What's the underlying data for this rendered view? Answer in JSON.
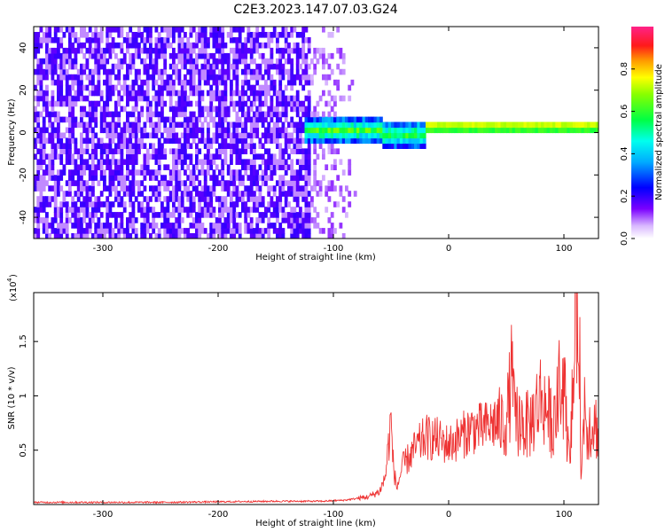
{
  "title": "C2E3.2023.147.07.03.G24",
  "chart_data": [
    {
      "type": "heatmap",
      "xlabel": "Height of straight line (km)",
      "ylabel": "Frequency (Hz)",
      "xlim": [
        -360,
        130
      ],
      "ylim": [
        -50,
        50
      ],
      "xticks": [
        -300,
        -200,
        -100,
        0,
        100
      ],
      "yticks": [
        -40,
        -20,
        0,
        20,
        40
      ],
      "colorbar": {
        "label": "Normalized spectral amplitude",
        "range": [
          0.0,
          1.0
        ],
        "ticks": [
          "0.0",
          "0.2",
          "0.4",
          "0.6",
          "0.8"
        ],
        "colormap": "rainbow (violet → blue → cyan → green → yellow → red → magenta)"
      },
      "features": [
        {
          "x_range": [
            -360,
            -120
          ],
          "freq_range": [
            -50,
            50
          ],
          "amplitude": 0.1,
          "description": "broadband violet noise"
        },
        {
          "x_range": [
            -120,
            -80
          ],
          "freq_range": [
            -50,
            50
          ],
          "amplitude": 0.05,
          "description": "fading noise"
        },
        {
          "x_range": [
            -125,
            -20
          ],
          "freq_center": 0,
          "freq_halfwidth": 6,
          "amplitude": 0.4
        },
        {
          "x_range": [
            -20,
            130
          ],
          "freq_center": 1.5,
          "freq_halfwidth": 3,
          "amplitude": 0.9
        }
      ]
    },
    {
      "type": "line",
      "xlabel": "Height of straight line (km)",
      "ylabel": "SNR (10 * v/v)",
      "y_scale_note": "(x10^4)",
      "xlim": [
        -360,
        130
      ],
      "ylim": [
        0.0,
        1.95
      ],
      "xticks": [
        -300,
        -200,
        -100,
        0,
        100
      ],
      "yticks": [
        0.5,
        1.0,
        1.5
      ],
      "color": "#ee3333",
      "series": [
        {
          "x": [
            -360,
            -250,
            -150,
            -110,
            -90,
            -70,
            -60,
            -55,
            -50,
            -48,
            -45,
            -40,
            -30,
            -20,
            -10,
            0,
            10,
            20,
            30,
            40,
            50,
            55,
            57,
            60,
            70,
            80,
            90,
            100,
            105,
            110,
            113,
            115,
            118,
            120,
            125,
            130
          ],
          "y": [
            0.02,
            0.02,
            0.03,
            0.03,
            0.04,
            0.07,
            0.12,
            0.25,
            0.78,
            0.35,
            0.15,
            0.35,
            0.5,
            0.62,
            0.6,
            0.55,
            0.62,
            0.7,
            0.7,
            0.75,
            0.75,
            1.2,
            0.8,
            0.78,
            0.72,
            1.0,
            0.75,
            1.1,
            0.35,
            1.6,
            1.95,
            0.2,
            1.0,
            0.7,
            0.75,
            0.7
          ]
        }
      ]
    }
  ]
}
